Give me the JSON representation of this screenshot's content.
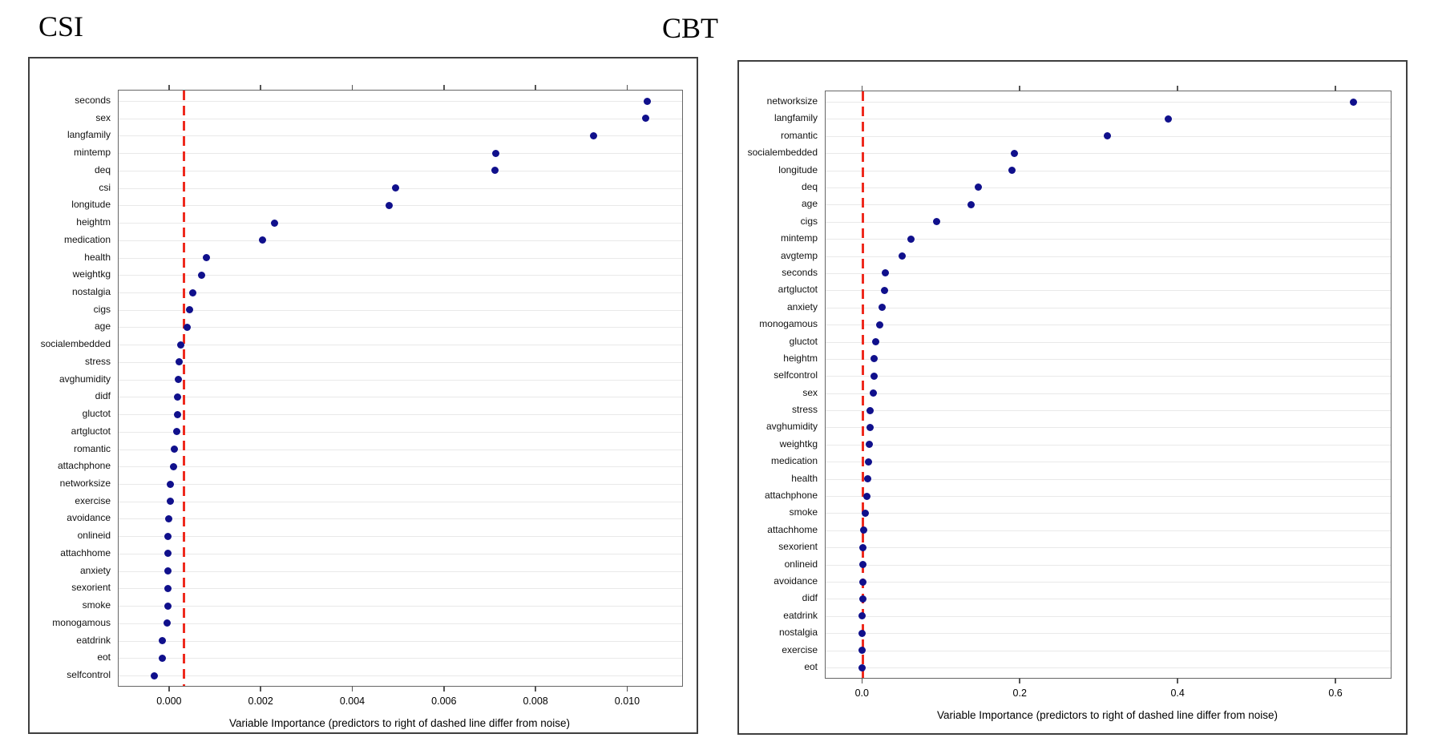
{
  "colors": {
    "dot": "#10108c",
    "dashed_line": "#ee2a1e",
    "grid": "#e9e9e9",
    "inner_border": "#666666",
    "outer_border": "#3f3f3f",
    "text": "#000000"
  },
  "chart_data": [
    {
      "type": "scatter",
      "title": "CSI",
      "xlabel": "Variable Importance (predictors to right of dashed line differ from noise)",
      "xlim": [
        -0.0011,
        0.0112
      ],
      "grid": true,
      "noise_threshold_line": 0.00032,
      "xticks": [
        0,
        0.002,
        0.004,
        0.006,
        0.008,
        0.01
      ],
      "xtick_labels": [
        "0.000",
        "0.002",
        "0.004",
        "0.006",
        "0.008",
        "0.010"
      ],
      "categories": [
        "seconds",
        "sex",
        "langfamily",
        "mintemp",
        "deq",
        "csi",
        "longitude",
        "heightm",
        "medication",
        "health",
        "weightkg",
        "nostalgia",
        "cigs",
        "age",
        "socialembedded",
        "stress",
        "avghumidity",
        "didf",
        "gluctot",
        "artgluctot",
        "romantic",
        "attachphone",
        "networksize",
        "exercise",
        "avoidance",
        "onlineid",
        "attachhome",
        "anxiety",
        "sexorient",
        "smoke",
        "monogamous",
        "eatdrink",
        "eot",
        "selfcontrol"
      ],
      "values": [
        0.01044,
        0.0104,
        0.00927,
        0.00714,
        0.00712,
        0.00495,
        0.00481,
        0.0023,
        0.00204,
        0.00082,
        0.00071,
        0.00051,
        0.00044,
        0.0004,
        0.00026,
        0.00022,
        0.00021,
        0.00019,
        0.00019,
        0.00017,
        0.00012,
        0.0001,
        3e-05,
        2e-05,
        0.0,
        -2e-05,
        -3e-05,
        -2e-05,
        -3e-05,
        -3e-05,
        -5e-05,
        -0.00014,
        -0.00015,
        -0.00032
      ]
    },
    {
      "type": "scatter",
      "title": "CBT",
      "xlabel": "Variable Importance (predictors to right of dashed line differ from noise)",
      "xlim": [
        -0.046,
        0.67
      ],
      "grid": true,
      "noise_threshold_line": 0.001,
      "xticks": [
        0,
        0.2,
        0.4,
        0.6
      ],
      "xtick_labels": [
        "0.0",
        "0.2",
        "0.4",
        "0.6"
      ],
      "categories": [
        "networksize",
        "langfamily",
        "romantic",
        "socialembedded",
        "longitude",
        "deq",
        "age",
        "cigs",
        "mintemp",
        "avgtemp",
        "seconds",
        "artgluctot",
        "anxiety",
        "monogamous",
        "gluctot",
        "heightm",
        "selfcontrol",
        "sex",
        "stress",
        "avghumidity",
        "weightkg",
        "medication",
        "health",
        "attachphone",
        "smoke",
        "attachhome",
        "sexorient",
        "onlineid",
        "avoidance",
        "didf",
        "eatdrink",
        "nostalgia",
        "exercise",
        "eot"
      ],
      "values": [
        0.623,
        0.388,
        0.311,
        0.193,
        0.19,
        0.147,
        0.138,
        0.095,
        0.062,
        0.051,
        0.03,
        0.029,
        0.026,
        0.023,
        0.017,
        0.015,
        0.015,
        0.014,
        0.01,
        0.01,
        0.009,
        0.008,
        0.007,
        0.006,
        0.004,
        0.002,
        0.001,
        0.001,
        0.001,
        0.001,
        0.0,
        0.0,
        0.0,
        0.0
      ]
    }
  ]
}
